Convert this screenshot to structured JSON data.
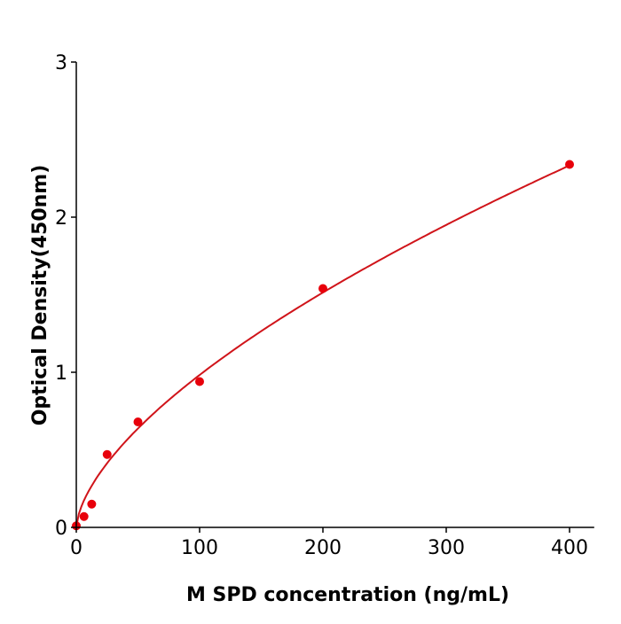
{
  "chart_data": {
    "type": "scatter",
    "title": "",
    "xlabel": "M  SPD concentration (ng/mL)",
    "ylabel": "Optical Density(450nm)",
    "xlim": [
      0,
      420
    ],
    "ylim": [
      0,
      3
    ],
    "xticks": [
      0,
      100,
      200,
      300,
      400
    ],
    "yticks": [
      0,
      1,
      2,
      3
    ],
    "grid": false,
    "colors": {
      "points": "#e8000b",
      "curve": "#d0141a",
      "axis": "#000000"
    },
    "series": [
      {
        "kind": "points",
        "x": [
          0,
          6.25,
          12.5,
          25,
          50,
          100,
          200,
          400
        ],
        "y": [
          0.01,
          0.07,
          0.15,
          0.47,
          0.68,
          0.94,
          1.54,
          2.34
        ]
      },
      {
        "kind": "fit-curve",
        "model": "power",
        "a": 0.0555,
        "b": 0.624
      }
    ]
  }
}
